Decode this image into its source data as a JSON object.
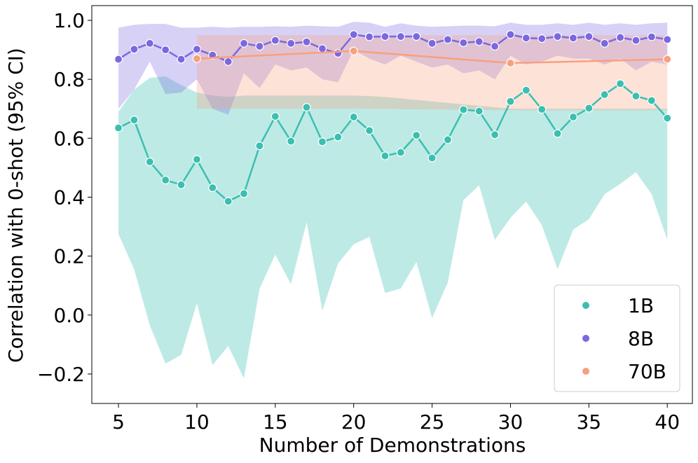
{
  "chart_data": {
    "type": "line",
    "title": "",
    "xlabel": "Number of Demonstrations",
    "ylabel": "Correlation with 0-shot (95% CI)",
    "xlim": [
      3.3,
      41.6
    ],
    "ylim": [
      -0.3,
      1.05
    ],
    "xticks": [
      5,
      10,
      15,
      20,
      25,
      30,
      35,
      40
    ],
    "yticks": [
      -0.2,
      0.0,
      0.2,
      0.4,
      0.6,
      0.8,
      1.0
    ],
    "ytick_labels": [
      "−0.2",
      "0.0",
      "0.2",
      "0.4",
      "0.6",
      "0.8",
      "1.0"
    ],
    "grid": false,
    "legend_position": "lower-right",
    "series": [
      {
        "name": "1B",
        "color": "#3bbfb1",
        "x": [
          5,
          6,
          7,
          8,
          9,
          10,
          11,
          12,
          13,
          14,
          15,
          16,
          17,
          18,
          19,
          20,
          21,
          22,
          23,
          24,
          25,
          26,
          27,
          28,
          29,
          30,
          31,
          32,
          33,
          34,
          35,
          36,
          37,
          38,
          39,
          40
        ],
        "values": [
          0.635,
          0.662,
          0.52,
          0.458,
          0.442,
          0.528,
          0.432,
          0.386,
          0.412,
          0.574,
          0.674,
          0.59,
          0.705,
          0.588,
          0.604,
          0.672,
          0.626,
          0.54,
          0.552,
          0.61,
          0.533,
          0.595,
          0.697,
          0.692,
          0.612,
          0.725,
          0.763,
          0.698,
          0.616,
          0.672,
          0.702,
          0.748,
          0.785,
          0.743,
          0.728,
          0.668
        ],
        "ci_low": [
          0.275,
          0.155,
          -0.035,
          -0.165,
          -0.135,
          0.04,
          -0.17,
          -0.105,
          -0.215,
          0.09,
          0.205,
          0.105,
          0.315,
          0.015,
          0.175,
          0.24,
          0.265,
          0.075,
          0.09,
          0.18,
          -0.01,
          0.11,
          0.39,
          0.44,
          0.255,
          0.33,
          0.385,
          0.305,
          0.155,
          0.29,
          0.325,
          0.41,
          0.445,
          0.485,
          0.41,
          0.255
        ],
        "ci_high": [
          0.69,
          0.765,
          0.805,
          0.81,
          0.78,
          0.755,
          0.745,
          0.74,
          0.745,
          0.745,
          0.745,
          0.745,
          0.745,
          0.745,
          0.745,
          0.745,
          0.743,
          0.74,
          0.735,
          0.73,
          0.725,
          0.72,
          0.715,
          0.71,
          0.705,
          0.7,
          0.7,
          0.7,
          0.7,
          0.7,
          0.7,
          0.7,
          0.7,
          0.7,
          0.7,
          0.7
        ]
      },
      {
        "name": "8B",
        "color": "#7b68e0",
        "x": [
          5,
          6,
          7,
          8,
          9,
          10,
          11,
          12,
          13,
          14,
          15,
          16,
          17,
          18,
          19,
          20,
          21,
          22,
          23,
          24,
          25,
          26,
          27,
          28,
          29,
          30,
          31,
          32,
          33,
          34,
          35,
          36,
          37,
          38,
          39,
          40
        ],
        "values": [
          0.868,
          0.902,
          0.922,
          0.9,
          0.868,
          0.902,
          0.882,
          0.86,
          0.922,
          0.912,
          0.932,
          0.922,
          0.927,
          0.904,
          0.888,
          0.952,
          0.944,
          0.945,
          0.945,
          0.945,
          0.922,
          0.935,
          0.924,
          0.928,
          0.912,
          0.952,
          0.94,
          0.938,
          0.945,
          0.94,
          0.945,
          0.922,
          0.942,
          0.932,
          0.944,
          0.935
        ],
        "ci_low": [
          0.7,
          0.765,
          0.86,
          0.75,
          0.755,
          0.8,
          0.7,
          0.68,
          0.82,
          0.77,
          0.85,
          0.83,
          0.84,
          0.8,
          0.79,
          0.9,
          0.87,
          0.85,
          0.88,
          0.86,
          0.84,
          0.85,
          0.82,
          0.83,
          0.8,
          0.88,
          0.85,
          0.86,
          0.88,
          0.87,
          0.87,
          0.85,
          0.87,
          0.83,
          0.86,
          0.85
        ],
        "ci_high": [
          0.975,
          0.985,
          0.988,
          0.988,
          0.975,
          0.975,
          0.978,
          0.975,
          0.978,
          0.978,
          0.98,
          0.978,
          0.982,
          0.98,
          0.978,
          0.995,
          0.992,
          0.978,
          0.99,
          0.982,
          0.978,
          0.98,
          0.982,
          0.982,
          0.98,
          0.992,
          0.985,
          0.985,
          0.99,
          0.985,
          0.992,
          0.985,
          0.99,
          0.985,
          0.99,
          0.992
        ]
      },
      {
        "name": "70B",
        "color": "#f7a07e",
        "x": [
          10,
          20,
          30,
          40
        ],
        "values": [
          0.87,
          0.896,
          0.855,
          0.868
        ],
        "ci_low": [
          0.7,
          0.7,
          0.695,
          0.695
        ],
        "ci_high": [
          0.95,
          0.95,
          0.95,
          0.95
        ]
      }
    ]
  }
}
